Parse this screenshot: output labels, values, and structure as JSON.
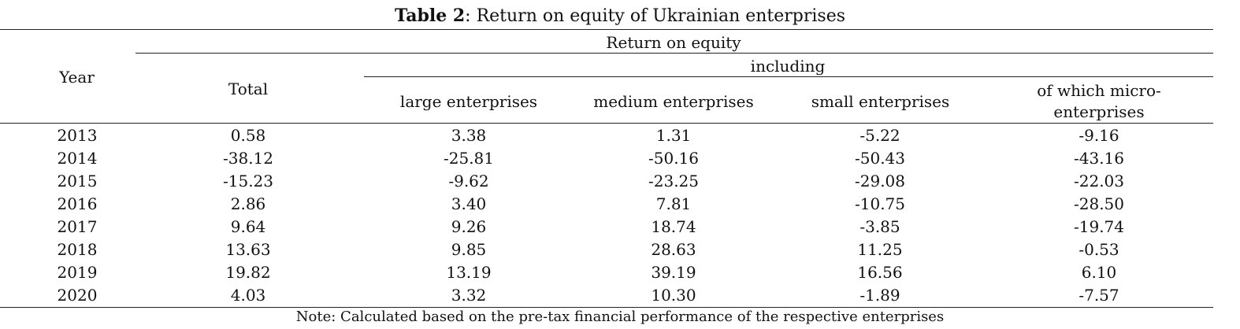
{
  "caption": {
    "label": "Table 2",
    "text": ": Return on equity of Ukrainian enterprises"
  },
  "header": {
    "year": "Year",
    "group": "Return on equity",
    "total": "Total",
    "including": "including",
    "large": "large enterprises",
    "medium": "medium enterprises",
    "small": "small enterprises",
    "micro_line1": "of which micro-",
    "micro_line2": "enterprises"
  },
  "rows": [
    {
      "year": "2013",
      "total": "0.58",
      "large": "3.38",
      "medium": "1.31",
      "small": "-5.22",
      "micro": "-9.16"
    },
    {
      "year": "2014",
      "total": "-38.12",
      "large": "-25.81",
      "medium": "-50.16",
      "small": "-50.43",
      "micro": "-43.16"
    },
    {
      "year": "2015",
      "total": "-15.23",
      "large": "-9.62",
      "medium": "-23.25",
      "small": "-29.08",
      "micro": "-22.03"
    },
    {
      "year": "2016",
      "total": "2.86",
      "large": "3.40",
      "medium": "7.81",
      "small": "-10.75",
      "micro": "-28.50"
    },
    {
      "year": "2017",
      "total": "9.64",
      "large": "9.26",
      "medium": "18.74",
      "small": "-3.85",
      "micro": "-19.74"
    },
    {
      "year": "2018",
      "total": "13.63",
      "large": "9.85",
      "medium": "28.63",
      "small": "11.25",
      "micro": "-0.53"
    },
    {
      "year": "2019",
      "total": "19.82",
      "large": "13.19",
      "medium": "39.19",
      "small": "16.56",
      "micro": "6.10"
    },
    {
      "year": "2020",
      "total": "4.03",
      "large": "3.32",
      "medium": "10.30",
      "small": "-1.89",
      "micro": "-7.57"
    }
  ],
  "note": "Note: Calculated based on the pre-tax financial performance of the respective enterprises"
}
